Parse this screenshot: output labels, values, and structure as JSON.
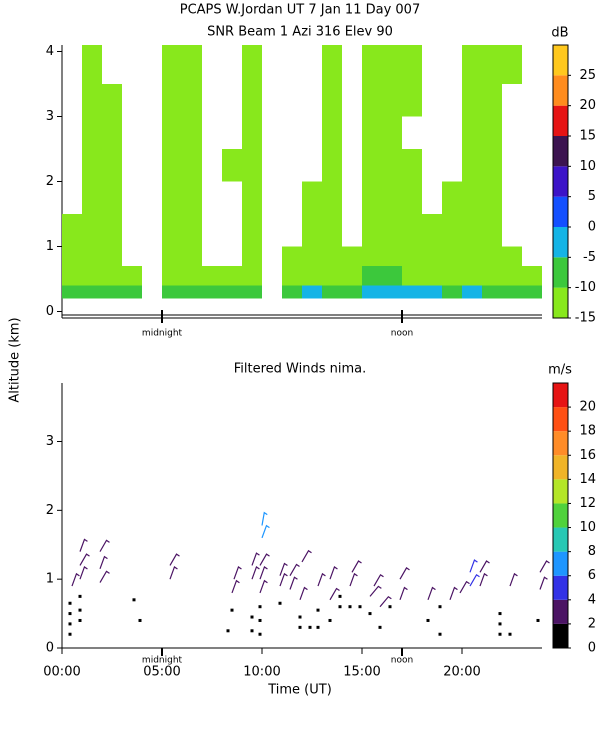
{
  "chart_data": [
    {
      "type": "heatmap",
      "title": "PCAPS W.Jordan UT   7 Jan 11 Day 007",
      "subtitle": "SNR Beam 1 Azi 316 Elev 90",
      "colorbar_label": "dB",
      "x_edges": [
        0,
        1,
        2,
        3,
        4,
        5,
        6,
        7,
        8,
        9,
        10,
        11,
        12,
        13,
        14,
        15,
        16,
        17,
        18,
        19,
        20,
        21,
        22,
        23,
        24
      ],
      "y_edges": [
        0.2,
        0.4,
        0.7,
        1.0,
        1.5,
        2.0,
        2.5,
        3.0,
        3.5,
        4.1
      ],
      "values": [
        [
          -9,
          -8,
          -8,
          -9,
          null,
          -8,
          -7,
          -8,
          -7,
          -8,
          null,
          -6,
          -5,
          -7,
          -6,
          -4,
          -3,
          -4,
          -5,
          -6,
          -5,
          -6,
          -7,
          -8
        ],
        [
          -12,
          -13,
          -12,
          -12,
          null,
          -12,
          -12,
          -13,
          -12,
          -12,
          null,
          -11,
          -11,
          -12,
          -11,
          -10,
          -10,
          -11,
          -12,
          -12,
          -11,
          -12,
          -12,
          -13
        ],
        [
          -13,
          -14,
          -13,
          null,
          null,
          -13,
          -14,
          null,
          null,
          -13,
          null,
          -13,
          -13,
          -14,
          -13,
          -13,
          -12,
          -13,
          -13,
          -14,
          -13,
          -13,
          -14,
          null
        ],
        [
          -13,
          -14,
          -14,
          null,
          null,
          -14,
          -13,
          null,
          null,
          -14,
          null,
          null,
          -14,
          -13,
          null,
          -13,
          -13,
          -14,
          -14,
          -13,
          -14,
          -14,
          null,
          null
        ],
        [
          null,
          -14,
          -14,
          null,
          null,
          -13,
          -14,
          null,
          null,
          -14,
          null,
          null,
          -14,
          -14,
          null,
          -14,
          -13,
          -14,
          null,
          -14,
          -14,
          -14,
          null,
          null
        ],
        [
          null,
          -14,
          -14,
          null,
          null,
          -13,
          -14,
          null,
          -14,
          -14,
          null,
          null,
          null,
          -14,
          null,
          -14,
          -14,
          -14,
          null,
          null,
          -14,
          -14,
          null,
          null
        ],
        [
          null,
          -14,
          -14,
          null,
          null,
          -13,
          -14,
          null,
          null,
          -14,
          null,
          null,
          null,
          -14,
          null,
          -14,
          -14,
          null,
          null,
          null,
          -14,
          -14,
          null,
          null
        ],
        [
          null,
          -14,
          -14,
          null,
          null,
          -14,
          -14,
          null,
          null,
          -14,
          null,
          null,
          null,
          -14,
          null,
          -14,
          -14,
          -14,
          null,
          null,
          -14,
          -14,
          null,
          null
        ],
        [
          null,
          -14,
          null,
          null,
          null,
          -14,
          -14,
          null,
          null,
          -14,
          null,
          null,
          null,
          -14,
          null,
          -14,
          -14,
          -14,
          null,
          null,
          -14,
          -14,
          -14,
          null
        ]
      ],
      "xlim": [
        0,
        24
      ],
      "ylim": [
        -0.1,
        4.1
      ],
      "yticks": [
        0,
        1,
        2,
        3,
        4
      ],
      "xticks": [
        {
          "value": 5,
          "label": "midnight"
        },
        {
          "value": 17,
          "label": "noon"
        }
      ],
      "clim": [
        -15,
        30
      ],
      "cticks": [
        -15,
        -10,
        -5,
        0,
        5,
        10,
        15,
        20,
        25
      ],
      "colors": [
        "#88e81c",
        "#3cc83c",
        "#14b4e6",
        "#1450ff",
        "#3c14c8",
        "#3c1450",
        "#e61414",
        "#ff8c1e",
        "#ffc81e"
      ]
    },
    {
      "type": "barbs",
      "title": "Filtered Winds nima.",
      "colorbar_label": "m/s",
      "ylabel": "Altitude (km)",
      "xlabel": "Time (UT)",
      "x": [
        0.4,
        0.4,
        0.4,
        0.4,
        0.5,
        0.9,
        0.9,
        0.9,
        0.9,
        0.9,
        0.9,
        1.9,
        1.9,
        1.9,
        3.6,
        3.9,
        5.4,
        5.4,
        8.3,
        8.5,
        8.5,
        8.6,
        9.5,
        9.5,
        9.5,
        9.5,
        9.9,
        9.9,
        9.9,
        9.9,
        9.9,
        9.9,
        10.0,
        10.0,
        10.9,
        10.9,
        10.9,
        11.4,
        11.4,
        11.9,
        11.9,
        11.9,
        12.0,
        12.4,
        12.8,
        12.8,
        12.8,
        13.4,
        13.4,
        13.4,
        13.9,
        13.9,
        14.4,
        14.4,
        14.5,
        14.9,
        15.4,
        15.4,
        15.6,
        15.9,
        15.9,
        16.4,
        16.9,
        16.9,
        18.3,
        18.3,
        18.9,
        18.9,
        19.4,
        19.9,
        20.4,
        20.4,
        20.9,
        20.9,
        21.9,
        21.9,
        21.9,
        22.4,
        22.4,
        23.8,
        23.9,
        23.9
      ],
      "y": [
        0.2,
        0.35,
        0.5,
        0.65,
        0.9,
        0.4,
        0.55,
        0.75,
        1.0,
        1.2,
        1.4,
        0.95,
        1.15,
        1.4,
        0.7,
        0.4,
        1.0,
        1.2,
        0.25,
        0.55,
        0.8,
        1.0,
        0.25,
        0.45,
        1.0,
        1.2,
        0.2,
        0.4,
        0.6,
        0.8,
        1.0,
        1.2,
        1.6,
        1.78,
        0.65,
        0.9,
        1.05,
        0.85,
        1.05,
        0.3,
        0.45,
        0.7,
        1.25,
        0.3,
        0.3,
        0.55,
        0.9,
        0.4,
        0.7,
        1.0,
        0.6,
        0.75,
        0.6,
        0.9,
        1.1,
        0.6,
        0.5,
        0.75,
        0.9,
        0.3,
        0.6,
        0.6,
        0.7,
        1.0,
        0.4,
        0.7,
        0.2,
        0.6,
        0.7,
        0.8,
        0.9,
        1.1,
        0.9,
        1.1,
        0.2,
        0.35,
        0.5,
        0.2,
        0.9,
        0.4,
        0.85,
        1.1
      ],
      "speed": [
        0.5,
        0.5,
        0.5,
        0.5,
        3,
        0.5,
        0.5,
        0.5,
        3,
        3,
        3,
        3,
        3,
        3,
        1.5,
        0.5,
        3,
        3,
        1.5,
        0.5,
        3,
        3,
        1.5,
        1.5,
        3,
        3,
        1.5,
        1.5,
        1.5,
        3,
        3,
        3,
        7,
        7,
        1,
        3,
        3,
        3,
        3,
        0.5,
        0.5,
        3,
        3,
        1.5,
        0.5,
        1.5,
        3,
        1.5,
        3,
        3,
        0.5,
        0.5,
        1.5,
        3,
        3,
        1.5,
        1.5,
        3,
        3,
        1.5,
        3,
        1.5,
        3,
        3,
        0.5,
        3,
        0.5,
        0.5,
        3,
        3,
        5,
        5,
        3,
        3,
        0.5,
        0.5,
        0.5,
        0.5,
        3,
        0.5,
        3,
        3
      ],
      "direction": [
        0,
        0,
        0,
        0,
        200,
        0,
        0,
        0,
        200,
        210,
        200,
        210,
        200,
        210,
        240,
        0,
        200,
        210,
        220,
        0,
        200,
        200,
        200,
        210,
        200,
        200,
        200,
        300,
        250,
        200,
        200,
        210,
        200,
        190,
        0,
        200,
        200,
        200,
        210,
        0,
        0,
        200,
        210,
        300,
        0,
        220,
        200,
        200,
        210,
        200,
        0,
        0,
        230,
        200,
        210,
        240,
        240,
        220,
        210,
        250,
        220,
        240,
        200,
        210,
        0,
        200,
        0,
        0,
        200,
        210,
        210,
        200,
        200,
        210,
        0,
        0,
        0,
        0,
        200,
        0,
        200,
        210
      ],
      "xlim": [
        0,
        24
      ],
      "ylim": [
        0,
        3.85
      ],
      "yticks": [
        0,
        1,
        2,
        3
      ],
      "xticks": [
        {
          "value": 0,
          "label": "00:00"
        },
        {
          "value": 5,
          "label": "05:00"
        },
        {
          "value": 10,
          "label": "10:00"
        },
        {
          "value": 15,
          "label": "15:00"
        },
        {
          "value": 20,
          "label": "20:00"
        }
      ],
      "local_ticks": [
        {
          "value": 5,
          "label": "midnight"
        },
        {
          "value": 17,
          "label": "noon"
        }
      ],
      "clim": [
        0,
        22
      ],
      "cticks": [
        0,
        2,
        4,
        6,
        8,
        10,
        12,
        14,
        16,
        18,
        20
      ],
      "colors": [
        "#000000",
        "#4b1464",
        "#3232e6",
        "#1e96ff",
        "#28c8b4",
        "#50d23c",
        "#b4e628",
        "#f0b428",
        "#ff8c28",
        "#ff5014",
        "#e61414"
      ]
    }
  ]
}
